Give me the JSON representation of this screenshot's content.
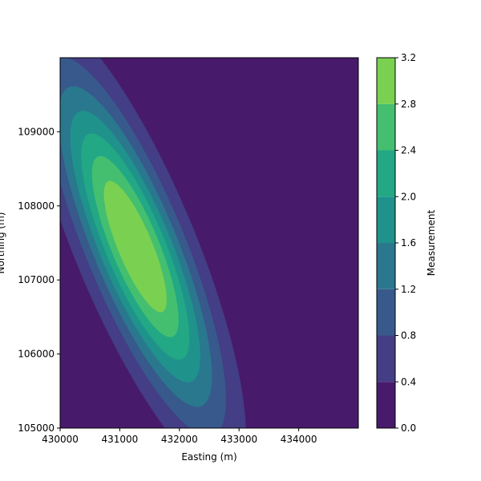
{
  "chart_data": {
    "type": "contourf",
    "xlabel": "Easting (m)",
    "ylabel": "Northing (m)",
    "xlim": [
      430000,
      435000
    ],
    "ylim": [
      105000,
      110000
    ],
    "x_ticks": [
      430000,
      431000,
      432000,
      433000,
      434000
    ],
    "x_tick_labels": [
      "430000",
      "431000",
      "432000",
      "433000",
      "434000"
    ],
    "y_ticks": [
      105000,
      106000,
      107000,
      108000,
      109000
    ],
    "y_tick_labels": [
      "105000",
      "106000",
      "107000",
      "108000",
      "109000"
    ],
    "colorbar": {
      "label": "Measurement",
      "levels": [
        0.0,
        0.4,
        0.8,
        1.2,
        1.6,
        2.0,
        2.4,
        2.8,
        3.2
      ],
      "tick_labels": [
        "0.0",
        "0.4",
        "0.8",
        "1.2",
        "1.6",
        "2.0",
        "2.4",
        "2.8",
        "3.2"
      ],
      "colors": [
        "#481a6c",
        "#433e85",
        "#38598c",
        "#2a788e",
        "#20928c",
        "#22a884",
        "#44bf70",
        "#7ad151",
        "#d2e21b"
      ]
    },
    "field": {
      "peak_value": 3.32,
      "peak_easting": 431260,
      "peak_northing": 107450,
      "orientation_deg": 62,
      "major_sigma_m": 1700,
      "minor_sigma_m": 475
    }
  }
}
